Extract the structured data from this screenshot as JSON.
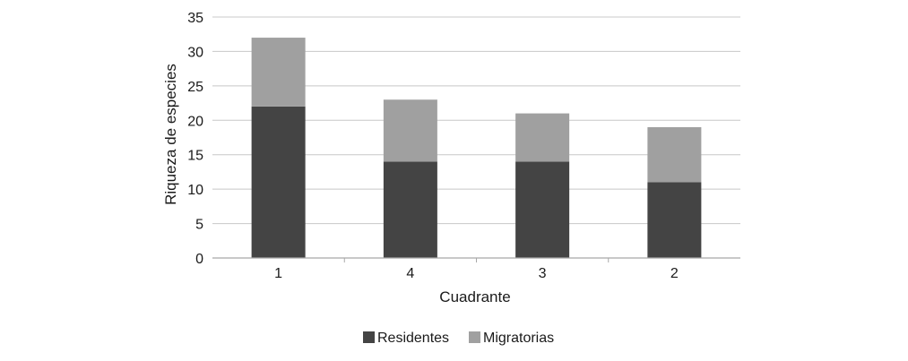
{
  "chart_data": {
    "type": "bar",
    "stacked": true,
    "title": "",
    "xlabel": "Cuadrante",
    "ylabel": "Riqueza de especies",
    "categories": [
      "1",
      "4",
      "3",
      "2"
    ],
    "series": [
      {
        "name": "Residentes",
        "values": [
          22,
          14,
          14,
          11
        ],
        "color": "#444444"
      },
      {
        "name": "Migratorias",
        "values": [
          10,
          9,
          7,
          8
        ],
        "color": "#a0a0a0"
      }
    ],
    "ylim": [
      0,
      35
    ],
    "yticks": [
      0,
      5,
      10,
      15,
      20,
      25,
      30,
      35
    ],
    "grid": true,
    "legend_position": "bottom"
  }
}
